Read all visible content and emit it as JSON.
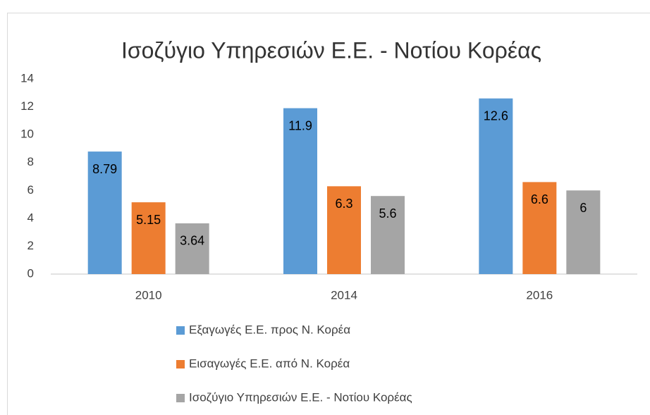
{
  "chart_data": {
    "type": "bar",
    "title": "Ισοζύγιο Υπηρεσιών Ε.Ε. - Νοτίου Κορέας",
    "categories": [
      "2010",
      "2014",
      "2016"
    ],
    "series": [
      {
        "name": "Εξαγωγές Ε.Ε. προς Ν. Κορέα",
        "color": "#5b9bd5",
        "values": [
          8.79,
          11.9,
          12.6
        ]
      },
      {
        "name": "Εισαγωγές Ε.Ε. από Ν. Κορέα",
        "color": "#ed7d31",
        "values": [
          5.15,
          6.3,
          6.6
        ]
      },
      {
        "name": "Ισοζύγιο Υπηρεσιών Ε.Ε. - Νοτίου Κορέας",
        "color": "#a5a5a5",
        "values": [
          3.64,
          5.6,
          6
        ]
      }
    ],
    "ylim": [
      0,
      14
    ],
    "yticks": [
      0,
      2,
      4,
      6,
      8,
      10,
      12,
      14
    ],
    "grid": false,
    "legend": "bottom"
  }
}
